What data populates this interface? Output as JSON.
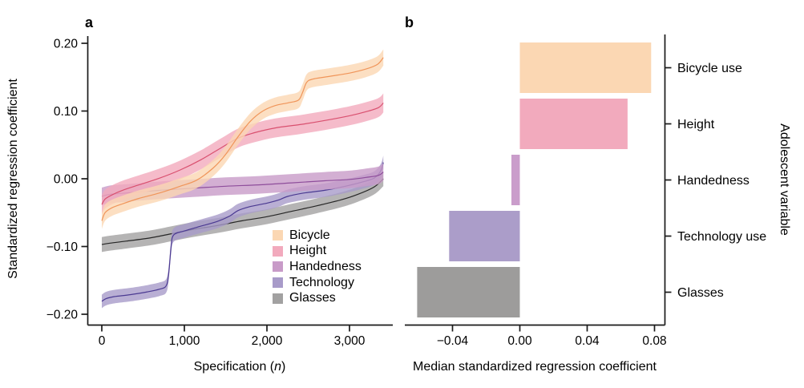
{
  "figure": {
    "panel_a_label": "a",
    "panel_b_label": "b"
  },
  "chart_data": [
    {
      "type": "line",
      "panel": "a",
      "title": "",
      "xlabel_prefix": "Specification (",
      "xlabel_italic": "n",
      "xlabel_suffix": ")",
      "ylabel": "Standardized regression coefficient",
      "grid": false,
      "legend_position": "inside-bottom-right",
      "xlim": [
        -170,
        3530
      ],
      "ylim": [
        -0.215,
        0.211
      ],
      "x_ticks": {
        "values": [
          0,
          1000,
          2000,
          3000
        ],
        "labels": [
          "0",
          "1,000",
          "2,000",
          "3,000"
        ]
      },
      "y_ticks": {
        "values": [
          0.2,
          0.1,
          0.0,
          -0.1,
          -0.2
        ],
        "labels": [
          "0.20",
          "0.10",
          "0.00",
          "−0.10",
          "−0.20"
        ]
      },
      "series": [
        {
          "label": "Bicycle",
          "band_color": "#FBD7B3",
          "line_color": "#F0955A",
          "band_halfwidth": 0.012,
          "points": [
            [
              0,
              -0.062
            ],
            [
              40,
              -0.05
            ],
            [
              120,
              -0.043
            ],
            [
              250,
              -0.037
            ],
            [
              450,
              -0.029
            ],
            [
              700,
              -0.021
            ],
            [
              950,
              -0.011
            ],
            [
              1150,
              -0.002
            ],
            [
              1350,
              0.016
            ],
            [
              1500,
              0.036
            ],
            [
              1650,
              0.062
            ],
            [
              1800,
              0.085
            ],
            [
              1950,
              0.1
            ],
            [
              2100,
              0.108
            ],
            [
              2250,
              0.112
            ],
            [
              2380,
              0.116
            ],
            [
              2430,
              0.127
            ],
            [
              2480,
              0.142
            ],
            [
              2550,
              0.147
            ],
            [
              2750,
              0.151
            ],
            [
              3000,
              0.156
            ],
            [
              3200,
              0.162
            ],
            [
              3340,
              0.169
            ],
            [
              3410,
              0.179
            ]
          ]
        },
        {
          "label": "Height",
          "band_color": "#F2AABD",
          "line_color": "#D9506F",
          "band_halfwidth": 0.014,
          "points": [
            [
              0,
              -0.038
            ],
            [
              40,
              -0.03
            ],
            [
              120,
              -0.024
            ],
            [
              250,
              -0.017
            ],
            [
              450,
              -0.009
            ],
            [
              700,
              0.001
            ],
            [
              950,
              0.013
            ],
            [
              1200,
              0.028
            ],
            [
              1450,
              0.046
            ],
            [
              1650,
              0.06
            ],
            [
              1850,
              0.068
            ],
            [
              2100,
              0.075
            ],
            [
              2400,
              0.08
            ],
            [
              2700,
              0.086
            ],
            [
              3000,
              0.093
            ],
            [
              3200,
              0.099
            ],
            [
              3350,
              0.105
            ],
            [
              3410,
              0.112
            ]
          ]
        },
        {
          "label": "Handedness",
          "band_color": "#C89BC8",
          "line_color": "#8E4D9B",
          "band_halfwidth": 0.013,
          "points": [
            [
              0,
              -0.026
            ],
            [
              100,
              -0.023
            ],
            [
              300,
              -0.021
            ],
            [
              700,
              -0.017
            ],
            [
              1100,
              -0.014
            ],
            [
              1500,
              -0.011
            ],
            [
              1900,
              -0.009
            ],
            [
              2300,
              -0.006
            ],
            [
              2700,
              -0.003
            ],
            [
              3000,
              -0.001
            ],
            [
              3200,
              0.002
            ],
            [
              3350,
              0.005
            ],
            [
              3410,
              0.01
            ]
          ]
        },
        {
          "label": "Technology",
          "band_color": "#A89BC9",
          "line_color": "#4B3A92",
          "band_halfwidth": 0.01,
          "points": [
            [
              0,
              -0.181
            ],
            [
              50,
              -0.177
            ],
            [
              150,
              -0.174
            ],
            [
              350,
              -0.171
            ],
            [
              550,
              -0.167
            ],
            [
              700,
              -0.163
            ],
            [
              780,
              -0.158
            ],
            [
              810,
              -0.14
            ],
            [
              840,
              -0.1
            ],
            [
              870,
              -0.083
            ],
            [
              1000,
              -0.077
            ],
            [
              1200,
              -0.07
            ],
            [
              1400,
              -0.063
            ],
            [
              1550,
              -0.055
            ],
            [
              1650,
              -0.047
            ],
            [
              1800,
              -0.041
            ],
            [
              2000,
              -0.036
            ],
            [
              2150,
              -0.031
            ],
            [
              2250,
              -0.026
            ],
            [
              2450,
              -0.021
            ],
            [
              2700,
              -0.017
            ],
            [
              2950,
              -0.011
            ],
            [
              3150,
              -0.005
            ],
            [
              3300,
              0.001
            ],
            [
              3380,
              0.012
            ],
            [
              3410,
              0.024
            ]
          ]
        },
        {
          "label": "Glasses",
          "band_color": "#A2A1A1",
          "line_color": "#262626",
          "band_halfwidth": 0.011,
          "points": [
            [
              0,
              -0.097
            ],
            [
              100,
              -0.095
            ],
            [
              300,
              -0.092
            ],
            [
              600,
              -0.087
            ],
            [
              850,
              -0.081
            ],
            [
              1100,
              -0.075
            ],
            [
              1400,
              -0.069
            ],
            [
              1700,
              -0.062
            ],
            [
              2000,
              -0.056
            ],
            [
              2300,
              -0.048
            ],
            [
              2600,
              -0.04
            ],
            [
              2900,
              -0.031
            ],
            [
              3100,
              -0.023
            ],
            [
              3300,
              -0.012
            ],
            [
              3410,
              0.0
            ]
          ]
        }
      ]
    },
    {
      "type": "bar",
      "panel": "b",
      "orientation": "horizontal",
      "title": "",
      "xlabel": "Median standardized regression coefficient",
      "right_axis_label": "Adolescent variable",
      "grid": false,
      "xlim": [
        -0.068,
        0.086
      ],
      "x_ticks": {
        "values": [
          -0.04,
          0.0,
          0.04,
          0.08
        ],
        "labels": [
          "−0.04",
          "0.00",
          "0.04",
          "0.08"
        ]
      },
      "categories": [
        "Bicycle use",
        "Height",
        "Handedness",
        "Technology use",
        "Glasses"
      ],
      "values": [
        0.078,
        0.064,
        -0.005,
        -0.042,
        -0.061
      ],
      "colors": [
        "#FBD7B3",
        "#F2AABD",
        "#CA9DCB",
        "#AB9DC9",
        "#9D9C9B"
      ]
    }
  ]
}
